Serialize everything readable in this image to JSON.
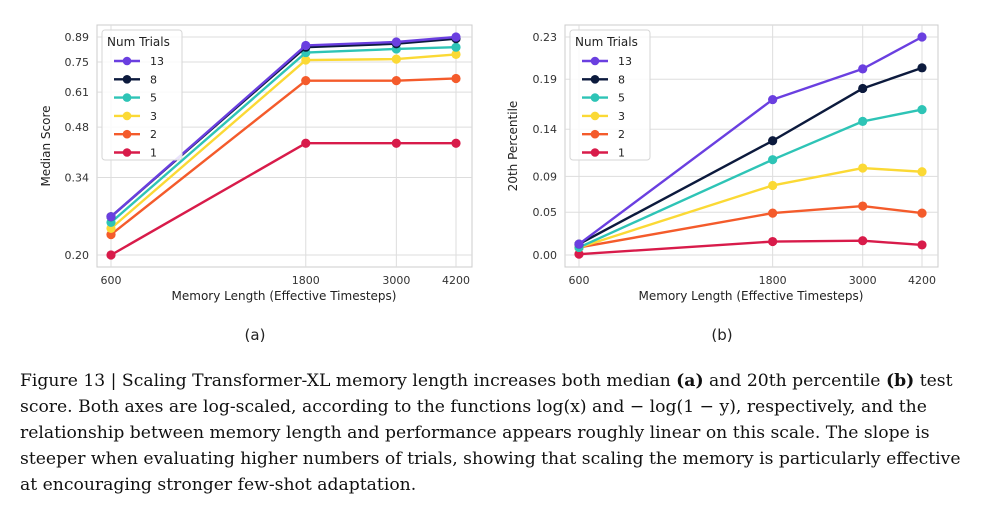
{
  "chart_data": [
    {
      "panel": "(a)",
      "type": "line",
      "x": [
        600,
        1800,
        3000,
        4200
      ],
      "xlabel": "Memory Length (Effective Timesteps)",
      "ylabel": "Median Score",
      "xticks": [
        "600",
        "1800",
        "3000",
        "4200"
      ],
      "yticks": [
        "0.20",
        "0.34",
        "0.48",
        "0.61",
        "0.75",
        "0.89"
      ],
      "y_scale": "log(x)",
      "ylim": [
        0.2,
        0.89
      ],
      "grid": true,
      "legend": {
        "title": "Num Trials",
        "position": "top-left"
      },
      "series": [
        {
          "name": "13",
          "color": "#6a3fe0",
          "values": [
            0.26,
            0.84,
            0.86,
            0.89
          ]
        },
        {
          "name": "8",
          "color": "#0c1a3d",
          "values": [
            0.26,
            0.83,
            0.85,
            0.88
          ]
        },
        {
          "name": "5",
          "color": "#2ec4b6",
          "values": [
            0.25,
            0.8,
            0.82,
            0.83
          ]
        },
        {
          "name": "3",
          "color": "#fbd935",
          "values": [
            0.24,
            0.76,
            0.765,
            0.79
          ]
        },
        {
          "name": "2",
          "color": "#f45b2b",
          "values": [
            0.23,
            0.66,
            0.66,
            0.67
          ]
        },
        {
          "name": "1",
          "color": "#d81b4a",
          "values": [
            0.2,
            0.43,
            0.43,
            0.43
          ]
        }
      ]
    },
    {
      "panel": "(b)",
      "type": "line",
      "x": [
        600,
        1800,
        3000,
        4200
      ],
      "xlabel": "Memory Length (Effective Timesteps)",
      "ylabel": "20th Percentile",
      "xticks": [
        "600",
        "1800",
        "3000",
        "4200"
      ],
      "yticks": [
        "0.00",
        "0.05",
        "0.09",
        "0.14",
        "0.19",
        "0.23"
      ],
      "y_scale": "-log(1-y)",
      "ylim": [
        0.0,
        0.23
      ],
      "grid": true,
      "legend": {
        "title": "Num Trials",
        "position": "top-left"
      },
      "series": [
        {
          "name": "13",
          "color": "#6a3fe0",
          "values": [
            0.013,
            0.17,
            0.2,
            0.23
          ]
        },
        {
          "name": "8",
          "color": "#0c1a3d",
          "values": [
            0.013,
            0.128,
            0.181,
            0.201
          ]
        },
        {
          "name": "5",
          "color": "#2ec4b6",
          "values": [
            0.009,
            0.108,
            0.148,
            0.16
          ]
        },
        {
          "name": "3",
          "color": "#fbd935",
          "values": [
            0.009,
            0.08,
            0.099,
            0.095
          ]
        },
        {
          "name": "2",
          "color": "#f45b2b",
          "values": [
            0.009,
            0.049,
            0.057,
            0.049
          ]
        },
        {
          "name": "1",
          "color": "#d81b4a",
          "values": [
            0.001,
            0.016,
            0.017,
            0.012
          ]
        }
      ]
    }
  ],
  "caption": {
    "segments": [
      {
        "text": "Figure 13 | Scaling Transformer-XL memory length increases both median ",
        "bold": false
      },
      {
        "text": "(a)",
        "bold": true
      },
      {
        "text": " and 20th percentile ",
        "bold": false
      },
      {
        "text": "(b)",
        "bold": true
      },
      {
        "text": " test score. Both axes are log-scaled, according to the functions log(x) and − log(1 − y), respectively, and the relationship between memory length and performance appears roughly linear on this scale. The slope is steeper when evaluating higher numbers of trials, showing that scaling the memory is particularly effective at encouraging stronger few-shot adaptation.",
        "bold": false
      }
    ]
  }
}
